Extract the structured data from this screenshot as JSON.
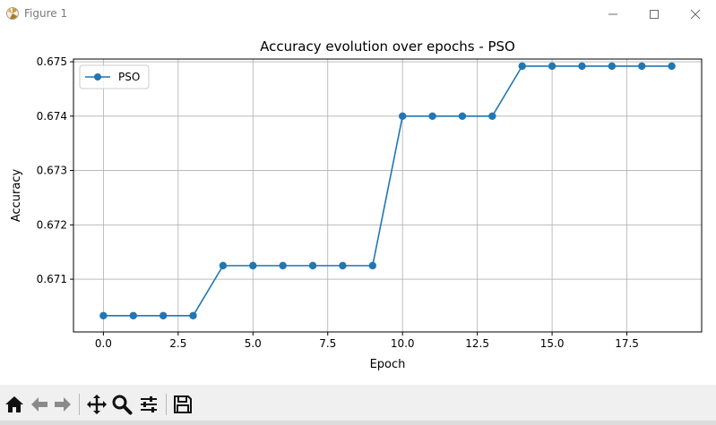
{
  "window": {
    "title": "Figure 1"
  },
  "chart_data": {
    "type": "line",
    "title": "Accuracy evolution over epochs - PSO",
    "xlabel": "Epoch",
    "ylabel": "Accuracy",
    "xlim": [
      -1.0,
      20.0
    ],
    "ylim": [
      0.67003,
      0.67505
    ],
    "xticks": [
      0.0,
      2.5,
      5.0,
      7.5,
      10.0,
      12.5,
      15.0,
      17.5
    ],
    "xtick_labels": [
      "0.0",
      "2.5",
      "5.0",
      "7.5",
      "10.0",
      "12.5",
      "15.0",
      "17.5"
    ],
    "yticks": [
      0.671,
      0.672,
      0.673,
      0.674,
      0.675
    ],
    "ytick_labels": [
      "0.671",
      "0.672",
      "0.673",
      "0.674",
      "0.675"
    ],
    "grid": true,
    "legend": "top-left",
    "series": [
      {
        "name": "PSO",
        "color": "#1f77b4",
        "x": [
          0,
          1,
          2,
          3,
          4,
          5,
          6,
          7,
          8,
          9,
          10,
          11,
          12,
          13,
          14,
          15,
          16,
          17,
          18,
          19
        ],
        "y": [
          0.67033,
          0.67033,
          0.67033,
          0.67033,
          0.67125,
          0.67125,
          0.67125,
          0.67125,
          0.67125,
          0.67125,
          0.674,
          0.674,
          0.674,
          0.674,
          0.67492,
          0.67492,
          0.67492,
          0.67492,
          0.67492,
          0.67492
        ]
      }
    ]
  },
  "toolbar": {
    "buttons": [
      "home-icon",
      "back-arrow-icon",
      "forward-arrow-icon",
      "pan-icon",
      "zoom-icon",
      "configure-subplots-icon",
      "save-icon"
    ]
  }
}
